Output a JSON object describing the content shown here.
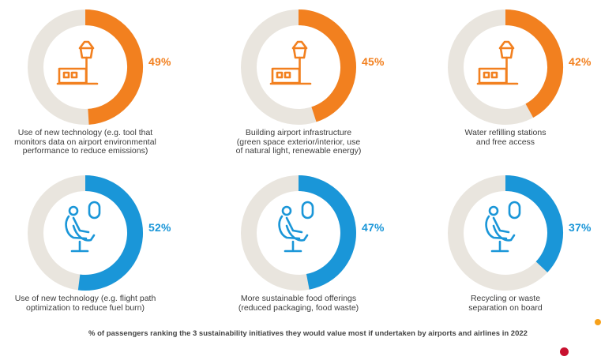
{
  "colors": {
    "orange": "#f2801f",
    "blue": "#1a96d8",
    "track": "#e9e5de",
    "dot_orange": "#f7a11a",
    "dot_red": "#c8102e"
  },
  "chart_data": {
    "type": "pie",
    "subtype": "donut-grid",
    "title": "% of passengers ranking the 3 sustainability initiatives they would value most if undertaken by airports and airlines in 2022",
    "items": [
      {
        "group": "airports",
        "icon": "control-tower-icon",
        "value": 49,
        "label_text": "49%",
        "label": "Use of new technology (e.g. tool that\nmonitors data on airport environmental\nperformance to reduce emissions)"
      },
      {
        "group": "airports",
        "icon": "control-tower-icon",
        "value": 45,
        "label_text": "45%",
        "label": "Building airport infrastructure\n(green space exterior/interior, use\nof natural light, renewable energy)"
      },
      {
        "group": "airports",
        "icon": "control-tower-icon",
        "value": 42,
        "label_text": "42%",
        "label": "Water refilling stations\nand free access"
      },
      {
        "group": "airlines",
        "icon": "airplane-seat-icon",
        "value": 52,
        "label_text": "52%",
        "label": "Use of new technology (e.g. flight path\noptimization to reduce fuel burn)"
      },
      {
        "group": "airlines",
        "icon": "airplane-seat-icon",
        "value": 47,
        "label_text": "47%",
        "label": "More sustainable food offerings\n(reduced packaging, food waste)"
      },
      {
        "group": "airlines",
        "icon": "airplane-seat-icon",
        "value": 37,
        "label_text": "37%",
        "label": "Recycling or waste\nseparation on board"
      }
    ]
  }
}
